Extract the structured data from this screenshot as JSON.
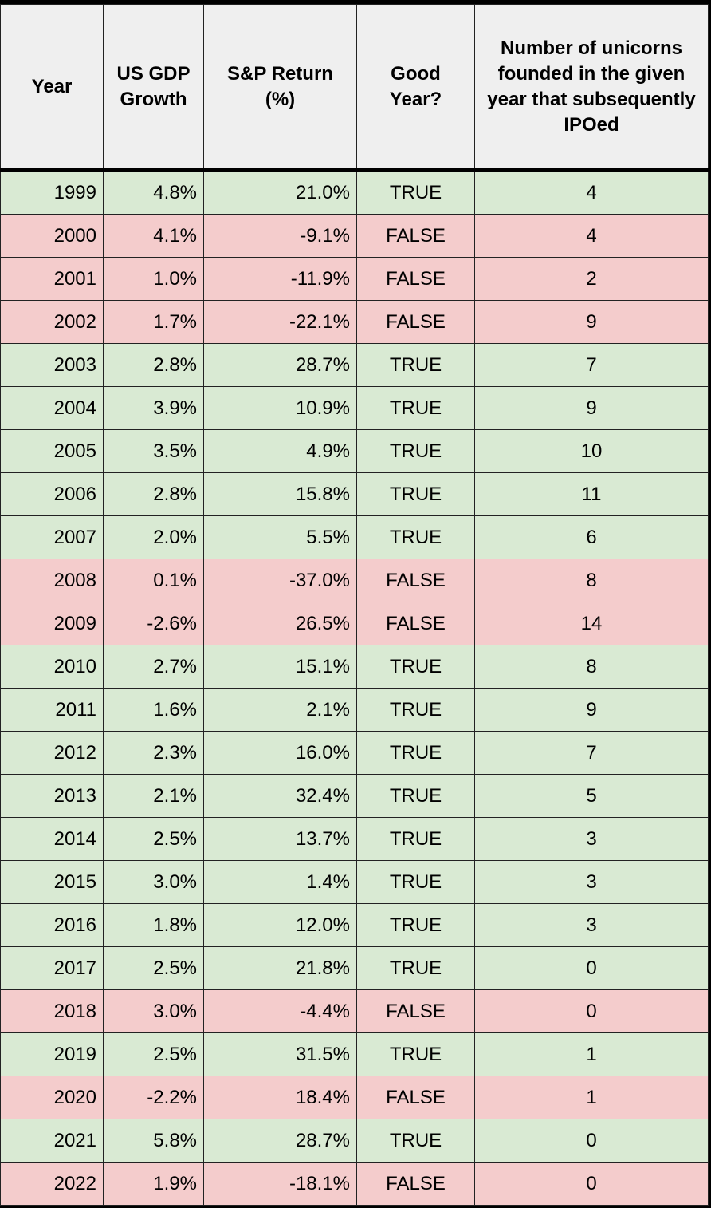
{
  "table": {
    "header": [
      "Year",
      "US GDP Growth",
      "S&P Return (%)",
      "Good Year?",
      "Number of unicorns founded in the given year that subsequently IPOed"
    ],
    "rows": [
      [
        "1999",
        "4.8%",
        "21.0%",
        "TRUE",
        "4"
      ],
      [
        "2000",
        "4.1%",
        "-9.1%",
        "FALSE",
        "4"
      ],
      [
        "2001",
        "1.0%",
        "-11.9%",
        "FALSE",
        "2"
      ],
      [
        "2002",
        "1.7%",
        "-22.1%",
        "FALSE",
        "9"
      ],
      [
        "2003",
        "2.8%",
        "28.7%",
        "TRUE",
        "7"
      ],
      [
        "2004",
        "3.9%",
        "10.9%",
        "TRUE",
        "9"
      ],
      [
        "2005",
        "3.5%",
        "4.9%",
        "TRUE",
        "10"
      ],
      [
        "2006",
        "2.8%",
        "15.8%",
        "TRUE",
        "11"
      ],
      [
        "2007",
        "2.0%",
        "5.5%",
        "TRUE",
        "6"
      ],
      [
        "2008",
        "0.1%",
        "-37.0%",
        "FALSE",
        "8"
      ],
      [
        "2009",
        "-2.6%",
        "26.5%",
        "FALSE",
        "14"
      ],
      [
        "2010",
        "2.7%",
        "15.1%",
        "TRUE",
        "8"
      ],
      [
        "2011",
        "1.6%",
        "2.1%",
        "TRUE",
        "9"
      ],
      [
        "2012",
        "2.3%",
        "16.0%",
        "TRUE",
        "7"
      ],
      [
        "2013",
        "2.1%",
        "32.4%",
        "TRUE",
        "5"
      ],
      [
        "2014",
        "2.5%",
        "13.7%",
        "TRUE",
        "3"
      ],
      [
        "2015",
        "3.0%",
        "1.4%",
        "TRUE",
        "3"
      ],
      [
        "2016",
        "1.8%",
        "12.0%",
        "TRUE",
        "3"
      ],
      [
        "2017",
        "2.5%",
        "21.8%",
        "TRUE",
        "0"
      ],
      [
        "2018",
        "3.0%",
        "-4.4%",
        "FALSE",
        "0"
      ],
      [
        "2019",
        "2.5%",
        "31.5%",
        "TRUE",
        "1"
      ],
      [
        "2020",
        "-2.2%",
        "18.4%",
        "FALSE",
        "1"
      ],
      [
        "2021",
        "5.8%",
        "28.7%",
        "TRUE",
        "0"
      ],
      [
        "2022",
        "1.9%",
        "-18.1%",
        "FALSE",
        "0"
      ]
    ],
    "row_fill": [
      "#d9ead3",
      "#f4cccc",
      "#f4cccc",
      "#f4cccc",
      "#d9ead3",
      "#d9ead3",
      "#d9ead3",
      "#d9ead3",
      "#d9ead3",
      "#f4cccc",
      "#f4cccc",
      "#d9ead3",
      "#d9ead3",
      "#d9ead3",
      "#d9ead3",
      "#d9ead3",
      "#d9ead3",
      "#d9ead3",
      "#d9ead3",
      "#f4cccc",
      "#d9ead3",
      "#f4cccc",
      "#d9ead3",
      "#f4cccc"
    ],
    "header_fill": "#efefef"
  }
}
